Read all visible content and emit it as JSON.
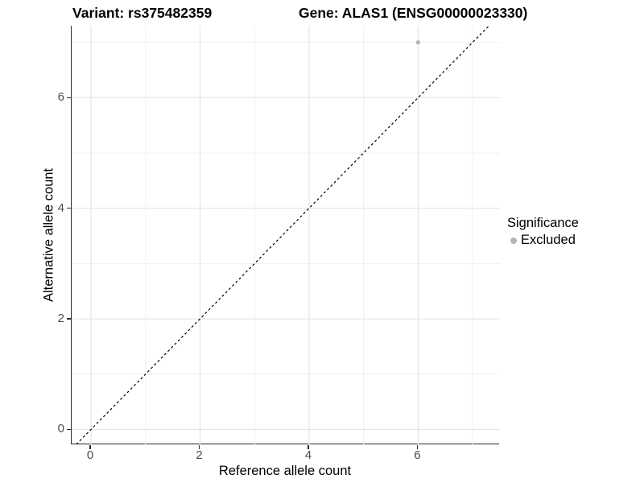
{
  "title": {
    "variant": "Variant: rs375482359",
    "gene": "Gene: ALAS1 (ENSG00000023330)"
  },
  "axes": {
    "x": {
      "label": "Reference allele count"
    },
    "y": {
      "label": "Alternative allele count"
    }
  },
  "legend": {
    "title": "Significance",
    "items": [
      {
        "label": "Excluded",
        "color": "#b5b5b5"
      }
    ]
  },
  "colors": {
    "point": "#b5b5b5",
    "identity_line": "#000000",
    "grid_major": "#e4e4e4",
    "grid_minor": "#f0f0f0",
    "axis_line": "#2b2b2b",
    "tick_label": "#4d4d4d"
  },
  "chart_data": {
    "type": "scatter",
    "title": "Variant: rs375482359   Gene: ALAS1 (ENSG00000023330)",
    "xlabel": "Reference allele count",
    "ylabel": "Alternative allele count",
    "xlim": [
      -0.355,
      7.5
    ],
    "ylim": [
      -0.27,
      7.3
    ],
    "x_ticks": [
      0,
      2,
      4,
      6
    ],
    "y_ticks": [
      0,
      2,
      4,
      6
    ],
    "x_minor_ticks": [
      1,
      3,
      5,
      7
    ],
    "y_minor_ticks": [
      1,
      3,
      5,
      7
    ],
    "grid": "on",
    "legend_position": "right",
    "series": [
      {
        "name": "Excluded",
        "color": "#b5b5b5",
        "points": [
          [
            6,
            7
          ]
        ]
      }
    ],
    "reference_line": {
      "type": "identity y=x",
      "style": "dashed",
      "color": "#000000"
    }
  }
}
